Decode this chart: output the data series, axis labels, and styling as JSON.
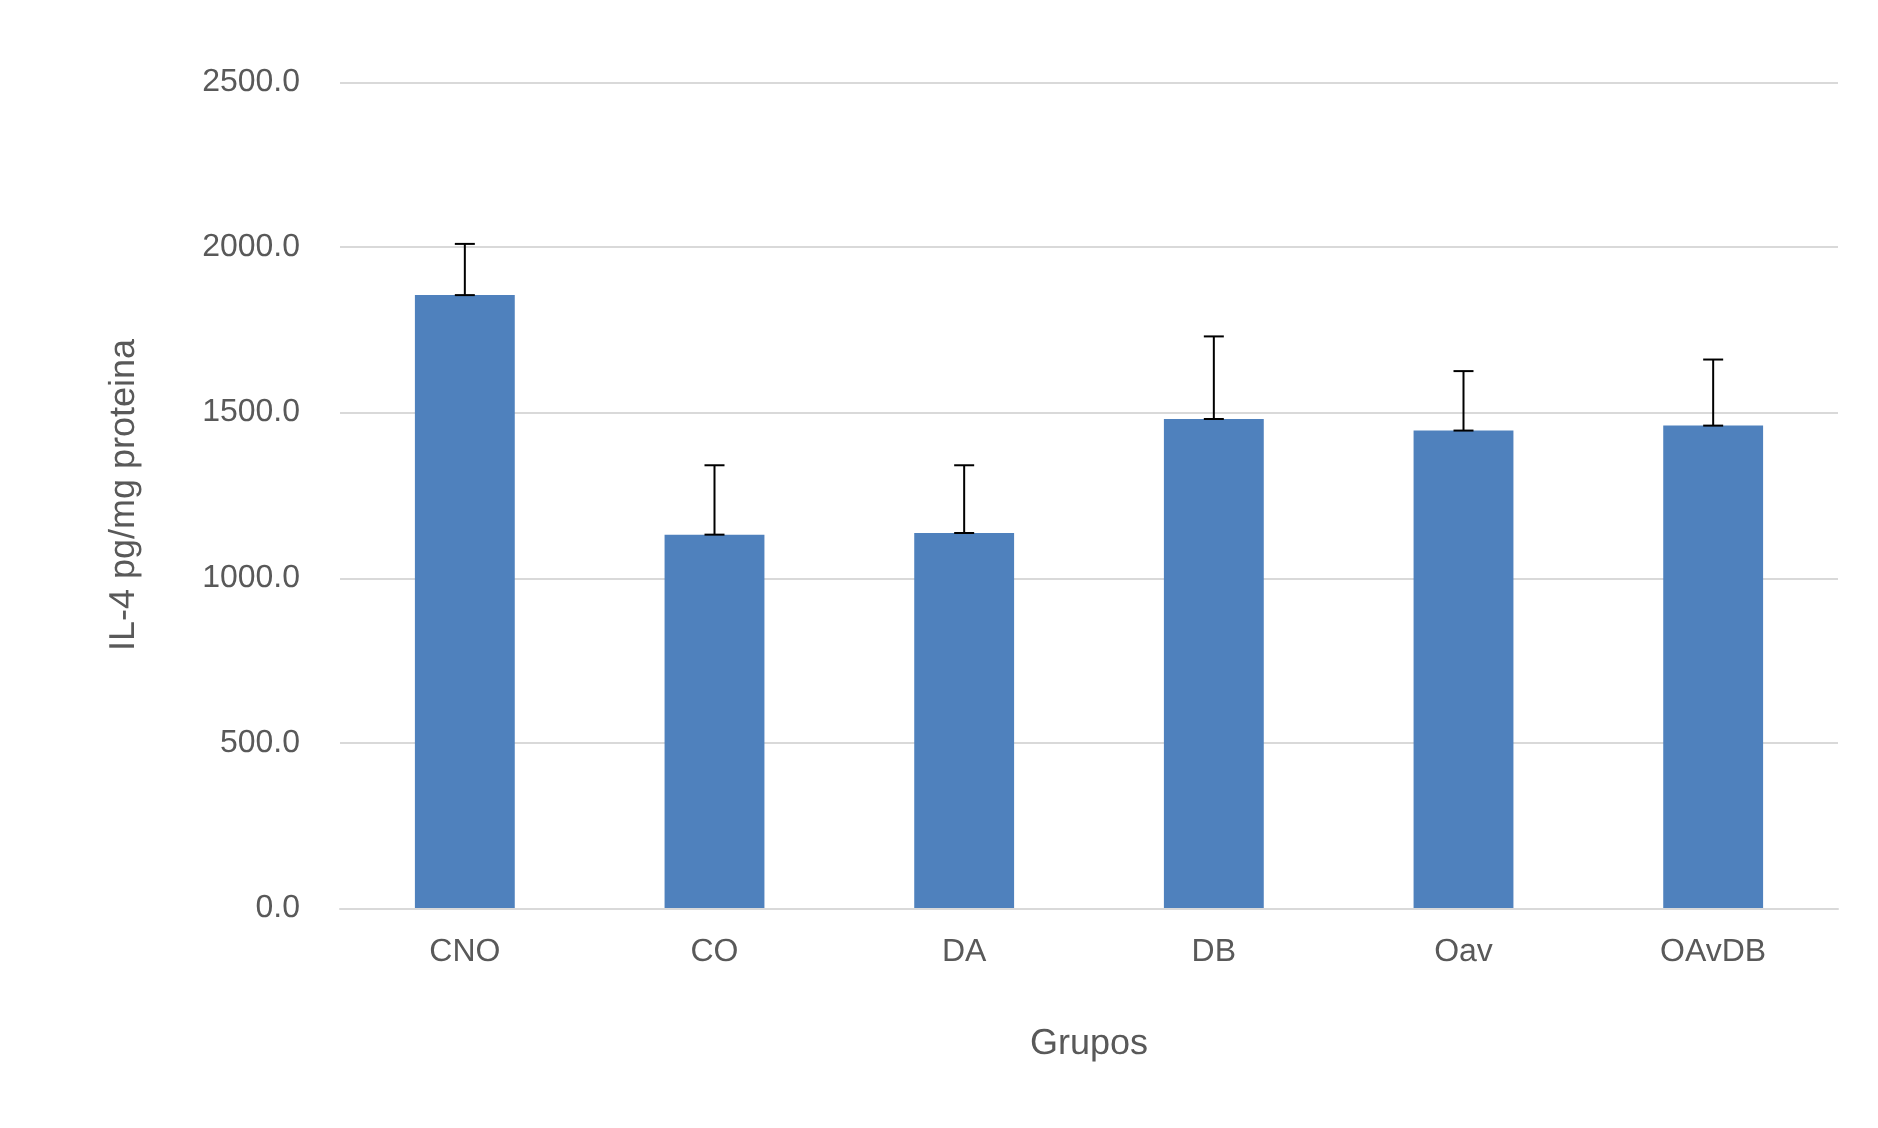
{
  "chart_data": {
    "type": "bar",
    "xlabel": "Grupos",
    "ylabel": "IL-4 pg/mg proteina",
    "categories": [
      "CNO",
      "CO",
      "DA",
      "DB",
      "Oav",
      "OAvDB"
    ],
    "values": [
      1855,
      1130,
      1135,
      1480,
      1445,
      1460
    ],
    "errors": [
      [
        1855,
        2010
      ],
      [
        1130,
        1340
      ],
      [
        1135,
        1340
      ],
      [
        1480,
        1730
      ],
      [
        1445,
        1625
      ],
      [
        1460,
        1660
      ]
    ],
    "color": "#4f81bd",
    "ylim": [
      0,
      2500
    ],
    "yticks": [
      {
        "value": 0,
        "label": "0.0"
      },
      {
        "value": 500,
        "label": "500.0"
      },
      {
        "value": 1000,
        "label": "1000.0"
      },
      {
        "value": 1500,
        "label": "1500.0"
      },
      {
        "value": 2000,
        "label": "2000.0"
      },
      {
        "value": 2500,
        "label": "2500.0"
      }
    ],
    "grid": "y"
  }
}
